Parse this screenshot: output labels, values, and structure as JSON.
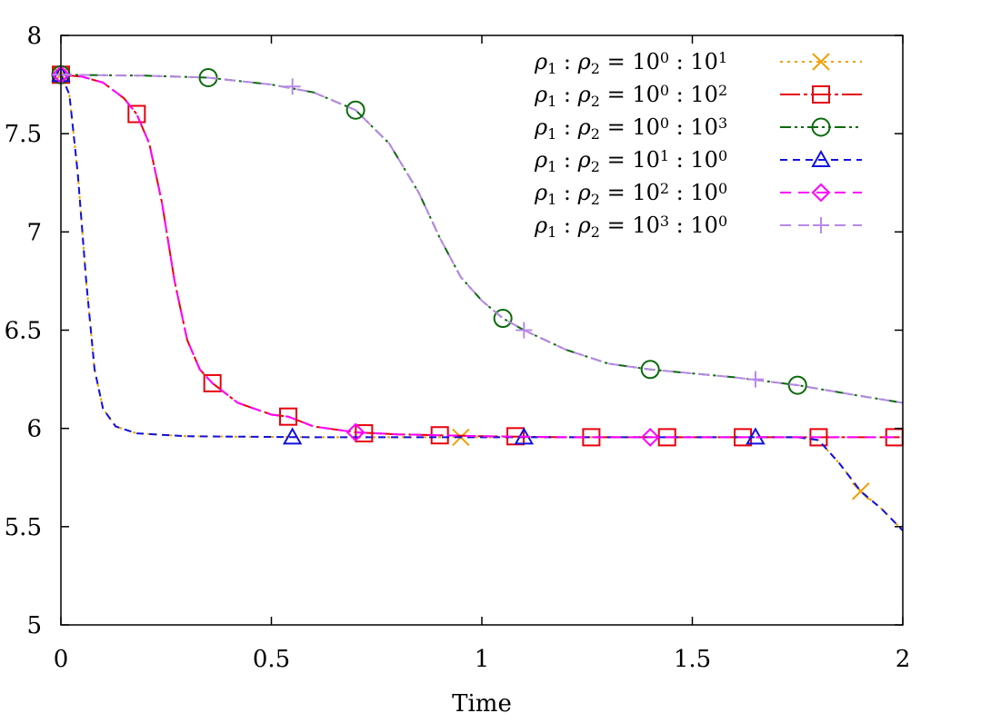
{
  "chart_data": {
    "type": "line",
    "title": "",
    "xlabel": "Time",
    "ylabel": "",
    "xlim": [
      0,
      2
    ],
    "ylim": [
      5,
      8
    ],
    "xticks": [
      {
        "value": 0,
        "label": "0"
      },
      {
        "value": 0.5,
        "label": "0.5"
      },
      {
        "value": 1,
        "label": "1"
      },
      {
        "value": 1.5,
        "label": "1.5"
      },
      {
        "value": 2,
        "label": "2"
      }
    ],
    "yticks": [
      {
        "value": 5,
        "label": "5"
      },
      {
        "value": 5.5,
        "label": "5.5"
      },
      {
        "value": 6,
        "label": "6"
      },
      {
        "value": 6.5,
        "label": "6.5"
      },
      {
        "value": 7,
        "label": "7"
      },
      {
        "value": 7.5,
        "label": "7.5"
      },
      {
        "value": 8,
        "label": "8"
      }
    ],
    "grid": false,
    "legend_position": "top-right",
    "series": [
      {
        "name": "ρ1 : ρ2 = 10^0 : 10^1",
        "legend": {
          "a": "10",
          "ae": "0",
          "b": "10",
          "be": "1"
        },
        "color": "#f0a000",
        "dash": "3,5",
        "marker": "x",
        "points": [
          [
            0,
            7.8
          ],
          [
            0.02,
            7.7
          ],
          [
            0.04,
            7.3
          ],
          [
            0.06,
            6.75
          ],
          [
            0.08,
            6.3
          ],
          [
            0.1,
            6.1
          ],
          [
            0.13,
            6.01
          ],
          [
            0.18,
            5.975
          ],
          [
            0.3,
            5.96
          ],
          [
            0.6,
            5.955
          ],
          [
            1.0,
            5.955
          ],
          [
            1.5,
            5.955
          ],
          [
            1.75,
            5.955
          ],
          [
            1.8,
            5.94
          ],
          [
            1.85,
            5.82
          ],
          [
            1.9,
            5.68
          ],
          [
            1.95,
            5.59
          ],
          [
            2.0,
            5.48
          ]
        ],
        "markers": [
          [
            0,
            7.8
          ],
          [
            0.95,
            5.955
          ],
          [
            1.9,
            5.68
          ]
        ]
      },
      {
        "name": "ρ1 : ρ2 = 10^0 : 10^2",
        "legend": {
          "a": "10",
          "ae": "0",
          "b": "10",
          "be": "2"
        },
        "color": "#e8000b",
        "dash": "22,4,4,4",
        "marker": "square",
        "points": [
          [
            0,
            7.8
          ],
          [
            0.05,
            7.79
          ],
          [
            0.1,
            7.76
          ],
          [
            0.15,
            7.68
          ],
          [
            0.18,
            7.6
          ],
          [
            0.21,
            7.45
          ],
          [
            0.24,
            7.15
          ],
          [
            0.27,
            6.75
          ],
          [
            0.3,
            6.45
          ],
          [
            0.33,
            6.3
          ],
          [
            0.36,
            6.23
          ],
          [
            0.42,
            6.13
          ],
          [
            0.5,
            6.07
          ],
          [
            0.54,
            6.06
          ],
          [
            0.6,
            6.01
          ],
          [
            0.7,
            5.98
          ],
          [
            0.8,
            5.97
          ],
          [
            0.9,
            5.965
          ],
          [
            1.0,
            5.96
          ],
          [
            1.2,
            5.955
          ],
          [
            1.5,
            5.955
          ],
          [
            1.8,
            5.955
          ],
          [
            2.0,
            5.955
          ]
        ],
        "markers": [
          [
            0,
            7.8
          ],
          [
            0.18,
            7.6
          ],
          [
            0.36,
            6.23
          ],
          [
            0.54,
            6.06
          ],
          [
            0.72,
            5.975
          ],
          [
            0.9,
            5.965
          ],
          [
            1.08,
            5.96
          ],
          [
            1.26,
            5.955
          ],
          [
            1.44,
            5.955
          ],
          [
            1.62,
            5.955
          ],
          [
            1.8,
            5.955
          ],
          [
            1.98,
            5.955
          ]
        ]
      },
      {
        "name": "ρ1 : ρ2 = 10^0 : 10^3",
        "legend": {
          "a": "10",
          "ae": "0",
          "b": "10",
          "be": "3"
        },
        "color": "#0a6a0a",
        "dash": "12,4,3,4,3,4",
        "marker": "circle",
        "points": [
          [
            0,
            7.8
          ],
          [
            0.2,
            7.795
          ],
          [
            0.35,
            7.785
          ],
          [
            0.5,
            7.75
          ],
          [
            0.6,
            7.71
          ],
          [
            0.7,
            7.62
          ],
          [
            0.78,
            7.45
          ],
          [
            0.85,
            7.2
          ],
          [
            0.9,
            6.97
          ],
          [
            0.95,
            6.77
          ],
          [
            1.0,
            6.65
          ],
          [
            1.05,
            6.56
          ],
          [
            1.1,
            6.5
          ],
          [
            1.2,
            6.4
          ],
          [
            1.3,
            6.33
          ],
          [
            1.4,
            6.3
          ],
          [
            1.6,
            6.26
          ],
          [
            1.75,
            6.22
          ],
          [
            1.9,
            6.165
          ],
          [
            2.0,
            6.13
          ]
        ],
        "markers": [
          [
            0,
            7.8
          ],
          [
            0.35,
            7.785
          ],
          [
            0.7,
            7.62
          ],
          [
            1.05,
            6.56
          ],
          [
            1.4,
            6.3
          ],
          [
            1.75,
            6.22
          ]
        ]
      },
      {
        "name": "ρ1 : ρ2 = 10^1 : 10^0",
        "legend": {
          "a": "10",
          "ae": "1",
          "b": "10",
          "be": "0"
        },
        "color": "#1010e0",
        "dash": "8,6",
        "marker": "triangle",
        "points": [
          [
            0,
            7.8
          ],
          [
            0.02,
            7.7
          ],
          [
            0.04,
            7.3
          ],
          [
            0.06,
            6.75
          ],
          [
            0.08,
            6.3
          ],
          [
            0.1,
            6.1
          ],
          [
            0.13,
            6.01
          ],
          [
            0.18,
            5.975
          ],
          [
            0.3,
            5.96
          ],
          [
            0.6,
            5.955
          ],
          [
            1.0,
            5.955
          ],
          [
            1.5,
            5.955
          ],
          [
            1.75,
            5.955
          ],
          [
            1.8,
            5.94
          ],
          [
            1.85,
            5.82
          ],
          [
            1.9,
            5.68
          ],
          [
            1.95,
            5.59
          ],
          [
            2.0,
            5.48
          ]
        ],
        "markers": [
          [
            0,
            7.8
          ],
          [
            0.55,
            5.955
          ],
          [
            1.1,
            5.955
          ],
          [
            1.65,
            5.955
          ]
        ]
      },
      {
        "name": "ρ1 : ρ2 = 10^2 : 10^0",
        "legend": {
          "a": "10",
          "ae": "2",
          "b": "10",
          "be": "0"
        },
        "color": "#ff00ff",
        "dash": "12,8",
        "marker": "diamond",
        "points": [
          [
            0,
            7.8
          ],
          [
            0.05,
            7.79
          ],
          [
            0.1,
            7.76
          ],
          [
            0.15,
            7.68
          ],
          [
            0.18,
            7.6
          ],
          [
            0.21,
            7.45
          ],
          [
            0.24,
            7.15
          ],
          [
            0.27,
            6.75
          ],
          [
            0.3,
            6.45
          ],
          [
            0.33,
            6.3
          ],
          [
            0.36,
            6.23
          ],
          [
            0.42,
            6.13
          ],
          [
            0.5,
            6.07
          ],
          [
            0.54,
            6.06
          ],
          [
            0.6,
            6.01
          ],
          [
            0.7,
            5.98
          ],
          [
            0.8,
            5.97
          ],
          [
            0.9,
            5.965
          ],
          [
            1.0,
            5.96
          ],
          [
            1.2,
            5.955
          ],
          [
            1.5,
            5.955
          ],
          [
            1.8,
            5.955
          ],
          [
            2.0,
            5.955
          ]
        ],
        "markers": [
          [
            0,
            7.8
          ],
          [
            0.7,
            5.98
          ],
          [
            1.4,
            5.955
          ]
        ]
      },
      {
        "name": "ρ1 : ρ2 = 10^3 : 10^0",
        "legend": {
          "a": "10",
          "ae": "3",
          "b": "10",
          "be": "0"
        },
        "color": "#b888e8",
        "dash": "12,8",
        "marker": "plus",
        "points": [
          [
            0,
            7.8
          ],
          [
            0.2,
            7.795
          ],
          [
            0.35,
            7.785
          ],
          [
            0.5,
            7.75
          ],
          [
            0.6,
            7.71
          ],
          [
            0.7,
            7.62
          ],
          [
            0.78,
            7.45
          ],
          [
            0.85,
            7.2
          ],
          [
            0.9,
            6.97
          ],
          [
            0.95,
            6.77
          ],
          [
            1.0,
            6.65
          ],
          [
            1.05,
            6.56
          ],
          [
            1.1,
            6.5
          ],
          [
            1.2,
            6.4
          ],
          [
            1.3,
            6.33
          ],
          [
            1.4,
            6.3
          ],
          [
            1.6,
            6.26
          ],
          [
            1.75,
            6.22
          ],
          [
            1.9,
            6.165
          ],
          [
            2.0,
            6.13
          ]
        ],
        "markers": [
          [
            0,
            7.8
          ],
          [
            0.55,
            7.74
          ],
          [
            1.1,
            6.5
          ],
          [
            1.65,
            6.25
          ]
        ]
      }
    ]
  }
}
